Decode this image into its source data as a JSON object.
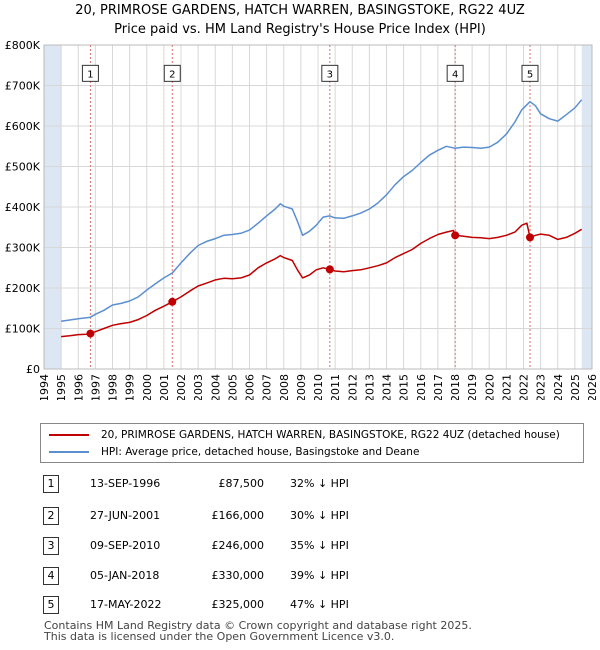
{
  "title": {
    "line1": "20, PRIMROSE GARDENS, HATCH WARREN, BASINGSTOKE, RG22 4UZ",
    "line2": "Price paid vs. HM Land Registry's House Price Index (HPI)"
  },
  "chart_data": {
    "type": "line",
    "xlim": [
      1994,
      2026
    ],
    "ylim": [
      0,
      800000
    ],
    "x_ticks": [
      "1994",
      "1995",
      "1996",
      "1997",
      "1998",
      "1999",
      "2000",
      "2001",
      "2002",
      "2003",
      "2004",
      "2005",
      "2006",
      "2007",
      "2008",
      "2009",
      "2010",
      "2011",
      "2012",
      "2013",
      "2014",
      "2015",
      "2016",
      "2017",
      "2018",
      "2019",
      "2020",
      "2021",
      "2022",
      "2023",
      "2024",
      "2025",
      "2026"
    ],
    "y_ticks": [
      {
        "value": 0,
        "label": "£0"
      },
      {
        "value": 100000,
        "label": "£100K"
      },
      {
        "value": 200000,
        "label": "£200K"
      },
      {
        "value": 300000,
        "label": "£300K"
      },
      {
        "value": 400000,
        "label": "£400K"
      },
      {
        "value": 500000,
        "label": "£500K"
      },
      {
        "value": 600000,
        "label": "£600K"
      },
      {
        "value": 700000,
        "label": "£700K"
      },
      {
        "value": 800000,
        "label": "£800K"
      }
    ],
    "series": [
      {
        "name": "20, PRIMROSE GARDENS, HATCH WARREN, BASINGSTOKE, RG22 4UZ (detached house)",
        "color": "#c00000",
        "points": [
          [
            1995.0,
            80000
          ],
          [
            1995.5,
            82000
          ],
          [
            1996.0,
            85000
          ],
          [
            1996.5,
            86000
          ],
          [
            1996.71,
            87500
          ],
          [
            1997.0,
            92000
          ],
          [
            1997.5,
            100000
          ],
          [
            1998.0,
            108000
          ],
          [
            1998.5,
            112000
          ],
          [
            1999.0,
            115000
          ],
          [
            1999.5,
            122000
          ],
          [
            2000.0,
            132000
          ],
          [
            2000.5,
            145000
          ],
          [
            2001.0,
            155000
          ],
          [
            2001.49,
            166000
          ],
          [
            2002.0,
            178000
          ],
          [
            2002.5,
            192000
          ],
          [
            2003.0,
            205000
          ],
          [
            2003.5,
            212000
          ],
          [
            2004.0,
            220000
          ],
          [
            2004.5,
            224000
          ],
          [
            2005.0,
            223000
          ],
          [
            2005.5,
            225000
          ],
          [
            2006.0,
            232000
          ],
          [
            2006.5,
            250000
          ],
          [
            2007.0,
            262000
          ],
          [
            2007.5,
            272000
          ],
          [
            2007.8,
            280000
          ],
          [
            2008.0,
            275000
          ],
          [
            2008.5,
            268000
          ],
          [
            2008.8,
            245000
          ],
          [
            2009.1,
            225000
          ],
          [
            2009.5,
            232000
          ],
          [
            2009.9,
            245000
          ],
          [
            2010.3,
            250000
          ],
          [
            2010.69,
            246000
          ],
          [
            2011.0,
            242000
          ],
          [
            2011.5,
            240000
          ],
          [
            2012.0,
            243000
          ],
          [
            2012.5,
            245000
          ],
          [
            2013.0,
            250000
          ],
          [
            2013.5,
            255000
          ],
          [
            2014.0,
            262000
          ],
          [
            2014.5,
            275000
          ],
          [
            2015.0,
            285000
          ],
          [
            2015.5,
            295000
          ],
          [
            2016.0,
            310000
          ],
          [
            2016.5,
            322000
          ],
          [
            2017.0,
            332000
          ],
          [
            2017.5,
            338000
          ],
          [
            2017.9,
            342000
          ],
          [
            2018.01,
            330000
          ],
          [
            2018.5,
            328000
          ],
          [
            2019.0,
            325000
          ],
          [
            2019.5,
            324000
          ],
          [
            2020.0,
            322000
          ],
          [
            2020.5,
            325000
          ],
          [
            2021.0,
            330000
          ],
          [
            2021.5,
            338000
          ],
          [
            2021.9,
            355000
          ],
          [
            2022.2,
            360000
          ],
          [
            2022.38,
            325000
          ],
          [
            2022.7,
            330000
          ],
          [
            2023.0,
            333000
          ],
          [
            2023.5,
            330000
          ],
          [
            2024.0,
            320000
          ],
          [
            2024.5,
            325000
          ],
          [
            2025.0,
            335000
          ],
          [
            2025.4,
            345000
          ]
        ]
      },
      {
        "name": "HPI: Average price, detached house, Basingstoke and Deane",
        "color": "#5b8fd0",
        "points": [
          [
            1995.0,
            118000
          ],
          [
            1995.5,
            121000
          ],
          [
            1996.0,
            124000
          ],
          [
            1996.71,
            128000
          ],
          [
            1997.0,
            135000
          ],
          [
            1997.5,
            145000
          ],
          [
            1998.0,
            158000
          ],
          [
            1998.5,
            162000
          ],
          [
            1999.0,
            168000
          ],
          [
            1999.5,
            178000
          ],
          [
            2000.0,
            195000
          ],
          [
            2000.5,
            210000
          ],
          [
            2001.0,
            225000
          ],
          [
            2001.49,
            237000
          ],
          [
            2002.0,
            262000
          ],
          [
            2002.5,
            285000
          ],
          [
            2003.0,
            305000
          ],
          [
            2003.5,
            315000
          ],
          [
            2004.0,
            322000
          ],
          [
            2004.5,
            330000
          ],
          [
            2005.0,
            332000
          ],
          [
            2005.5,
            335000
          ],
          [
            2006.0,
            343000
          ],
          [
            2006.5,
            360000
          ],
          [
            2007.0,
            378000
          ],
          [
            2007.5,
            395000
          ],
          [
            2007.8,
            408000
          ],
          [
            2008.0,
            402000
          ],
          [
            2008.5,
            395000
          ],
          [
            2008.8,
            365000
          ],
          [
            2009.1,
            330000
          ],
          [
            2009.5,
            340000
          ],
          [
            2009.9,
            355000
          ],
          [
            2010.3,
            375000
          ],
          [
            2010.69,
            378000
          ],
          [
            2011.0,
            373000
          ],
          [
            2011.5,
            372000
          ],
          [
            2012.0,
            378000
          ],
          [
            2012.5,
            385000
          ],
          [
            2013.0,
            395000
          ],
          [
            2013.5,
            410000
          ],
          [
            2014.0,
            430000
          ],
          [
            2014.5,
            455000
          ],
          [
            2015.0,
            475000
          ],
          [
            2015.5,
            490000
          ],
          [
            2016.0,
            510000
          ],
          [
            2016.5,
            528000
          ],
          [
            2017.0,
            540000
          ],
          [
            2017.5,
            550000
          ],
          [
            2018.01,
            545000
          ],
          [
            2018.5,
            548000
          ],
          [
            2019.0,
            547000
          ],
          [
            2019.5,
            545000
          ],
          [
            2020.0,
            548000
          ],
          [
            2020.5,
            560000
          ],
          [
            2021.0,
            580000
          ],
          [
            2021.5,
            610000
          ],
          [
            2021.9,
            640000
          ],
          [
            2022.38,
            660000
          ],
          [
            2022.7,
            650000
          ],
          [
            2023.0,
            630000
          ],
          [
            2023.5,
            618000
          ],
          [
            2024.0,
            612000
          ],
          [
            2024.5,
            628000
          ],
          [
            2025.0,
            645000
          ],
          [
            2025.4,
            665000
          ]
        ]
      }
    ],
    "transactions": [
      {
        "num": "1",
        "x": 1996.71,
        "price": 87500
      },
      {
        "num": "2",
        "x": 2001.49,
        "price": 166000
      },
      {
        "num": "3",
        "x": 2010.69,
        "price": 246000
      },
      {
        "num": "4",
        "x": 2018.01,
        "price": 330000
      },
      {
        "num": "5",
        "x": 2022.38,
        "price": 325000
      }
    ],
    "shaded_ranges": [
      [
        1994,
        1995
      ],
      [
        2025.4,
        2026
      ]
    ],
    "label_y": 730000
  },
  "legend": {
    "property_label": "20, PRIMROSE GARDENS, HATCH WARREN, BASINGSTOKE, RG22 4UZ (detached house)",
    "hpi_label": "HPI: Average price, detached house, Basingstoke and Deane"
  },
  "transactions": [
    {
      "num": "1",
      "date": "13-SEP-1996",
      "price": "£87,500",
      "hpi": "32% ↓ HPI"
    },
    {
      "num": "2",
      "date": "27-JUN-2001",
      "price": "£166,000",
      "hpi": "30% ↓ HPI"
    },
    {
      "num": "3",
      "date": "09-SEP-2010",
      "price": "£246,000",
      "hpi": "35% ↓ HPI"
    },
    {
      "num": "4",
      "date": "05-JAN-2018",
      "price": "£330,000",
      "hpi": "39% ↓ HPI"
    },
    {
      "num": "5",
      "date": "17-MAY-2022",
      "price": "£325,000",
      "hpi": "47% ↓ HPI"
    }
  ],
  "footer": {
    "line1": "Contains HM Land Registry data © Crown copyright and database right 2025.",
    "line2": "This data is licensed under the Open Government Licence v3.0."
  },
  "colors": {
    "property": "#c00000",
    "hpi": "#5b8fd0",
    "shade": "#dde6f3",
    "grid": "#d8d8d8",
    "marker_line": "#e07070"
  }
}
